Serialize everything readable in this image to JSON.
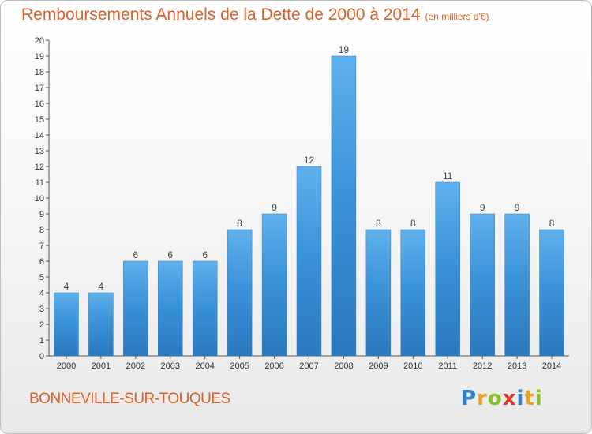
{
  "page": {
    "title": "Remboursements Annuels de la Dette de 2000 à 2014",
    "unit": "(en milliers d'€)",
    "city": "BONNEVILLE-SUR-TOUQUES",
    "logo": {
      "letters": [
        "P",
        "r",
        "o",
        "x",
        "i",
        "t",
        "i"
      ],
      "colors": [
        "#2e86c9",
        "#e8a21c",
        "#8cbf26",
        "#d93a2b",
        "#2e86c9",
        "#e8a21c",
        "#8cbf26"
      ]
    }
  },
  "chart_data": {
    "type": "bar",
    "title": "Remboursements Annuels de la Dette de 2000 à 2014",
    "subtitle": "(en milliers d'€)",
    "xlabel": "",
    "ylabel": "",
    "categories": [
      "2000",
      "2001",
      "2002",
      "2003",
      "2004",
      "2005",
      "2006",
      "2007",
      "2008",
      "2009",
      "2010",
      "2011",
      "2012",
      "2013",
      "2014"
    ],
    "values": [
      4,
      4,
      6,
      6,
      6,
      8,
      9,
      12,
      19,
      8,
      8,
      11,
      9,
      9,
      8
    ],
    "ylim": [
      0,
      20
    ],
    "yticks": [
      0,
      1,
      2,
      3,
      4,
      5,
      6,
      7,
      8,
      9,
      10,
      11,
      12,
      13,
      14,
      15,
      16,
      17,
      18,
      19,
      20
    ],
    "grid": false,
    "legend": "none",
    "bar_color": "#3c93d8",
    "bar_color_light": "#5fb0ec",
    "bar_color_dark": "#2a78bd"
  }
}
